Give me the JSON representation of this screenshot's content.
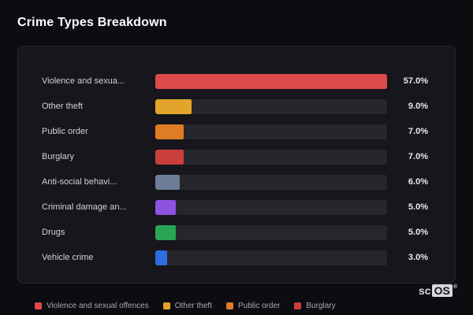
{
  "page": {
    "title": "Crime Types Breakdown",
    "background": "#0c0c11",
    "card_background": "#16161c",
    "track_color": "#26262d"
  },
  "chart_data": {
    "type": "bar",
    "orientation": "horizontal",
    "title": "Crime Types Breakdown",
    "categories": [
      "Violence and sexua...",
      "Other theft",
      "Public order",
      "Burglary",
      "Anti-social behavi...",
      "Criminal damage an...",
      "Drugs",
      "Vehicle crime"
    ],
    "values": [
      57.0,
      9.0,
      7.0,
      7.0,
      6.0,
      5.0,
      5.0,
      3.0
    ],
    "value_labels": [
      "57.0%",
      "9.0%",
      "7.0%",
      "7.0%",
      "6.0%",
      "5.0%",
      "5.0%",
      "3.0%"
    ],
    "bar_colors": [
      "#dc4b4b",
      "#e2a42b",
      "#df7c26",
      "#cb3e3e",
      "#6d7e96",
      "#8b53e0",
      "#28a552",
      "#2e6ce0"
    ],
    "xlabel": "",
    "ylabel": "",
    "xlim": [
      0,
      57
    ],
    "grid": false,
    "legend_position": "bottom"
  },
  "legend": {
    "items": [
      {
        "label": "Violence and sexual offences",
        "color": "#dc4b4b"
      },
      {
        "label": "Other theft",
        "color": "#e2a42b"
      },
      {
        "label": "Public order",
        "color": "#df7c26"
      },
      {
        "label": "Burglary",
        "color": "#cb3e3e"
      }
    ]
  },
  "branding": {
    "prefix": "sc",
    "box": "OS",
    "reg": "®"
  }
}
